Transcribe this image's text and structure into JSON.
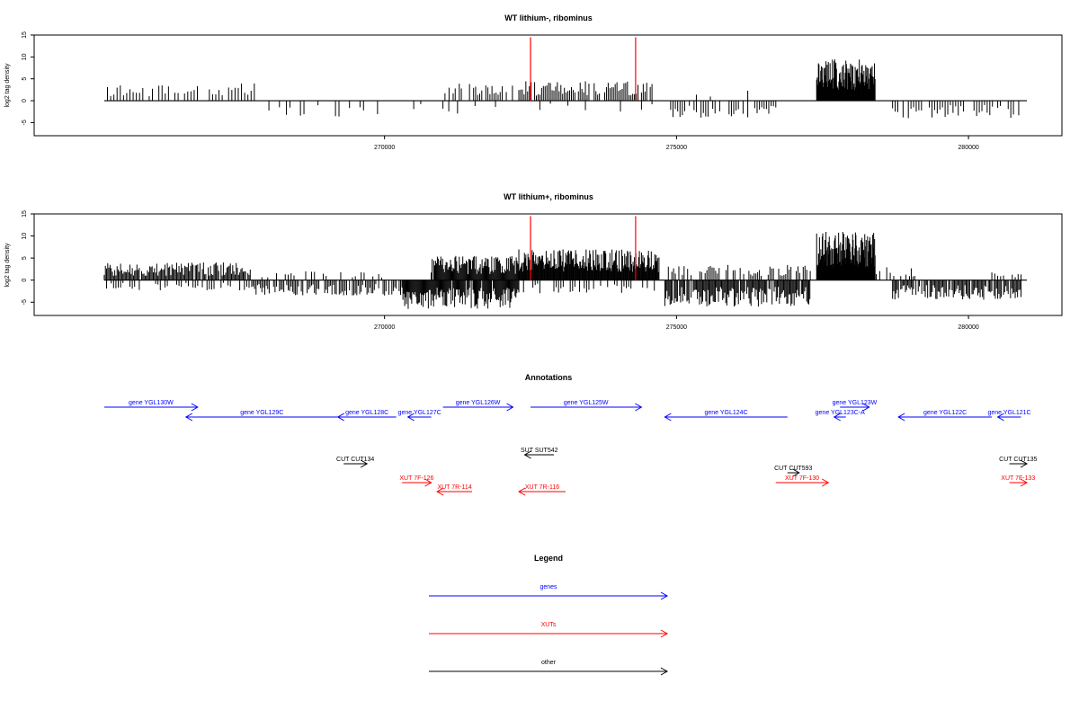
{
  "colors": {
    "genes": "#0000ff",
    "xuts": "#ff0000",
    "other": "#000000",
    "marker": "#ff0000"
  },
  "chart_data": [
    {
      "type": "bar",
      "title": "WT lithium-, ribominus",
      "ylabel": "log2 tag density",
      "xlim": [
        264000,
        281600
      ],
      "ylim": [
        -8,
        15
      ],
      "x_ticks": [
        270000,
        275000,
        280000
      ],
      "y_ticks": [
        15,
        10,
        5,
        0,
        -5
      ],
      "markers_x": [
        272500,
        274300
      ],
      "marker_top": 14.5,
      "segments": [
        {
          "x0": 265200,
          "x1": 266800,
          "amp": 3.5,
          "step": 55,
          "density": 0.8,
          "seed": 11
        },
        {
          "x0": 267000,
          "x1": 267800,
          "amp": 4,
          "step": 55,
          "density": 0.8,
          "seed": 12
        },
        {
          "x0": 267900,
          "x1": 270000,
          "amp": -4,
          "step": 60,
          "density": 0.35,
          "seed": 13
        },
        {
          "x0": 270200,
          "x1": 270900,
          "amp": -3,
          "step": 60,
          "density": 0.4,
          "seed": 14
        },
        {
          "x0": 271000,
          "x1": 272200,
          "amp": 4.5,
          "step": 35,
          "density": 0.75,
          "seed": 15
        },
        {
          "x0": 271000,
          "x1": 272200,
          "amp": -3,
          "step": 50,
          "density": 0.3,
          "seed": 16
        },
        {
          "x0": 272300,
          "x1": 274600,
          "amp": 4.5,
          "step": 30,
          "density": 0.85,
          "seed": 17
        },
        {
          "x0": 272300,
          "x1": 274600,
          "amp": -2.5,
          "step": 60,
          "density": 0.25,
          "seed": 18
        },
        {
          "x0": 274900,
          "x1": 276700,
          "amp": -4,
          "step": 40,
          "density": 0.8,
          "seed": 19
        },
        {
          "x0": 275100,
          "x1": 277000,
          "amp": 2.5,
          "step": 80,
          "density": 0.2,
          "seed": 20
        },
        {
          "x0": 277400,
          "x1": 278400,
          "amp": 9.5,
          "step": 10,
          "density": 1.0,
          "seed": 21
        },
        {
          "x0": 278700,
          "x1": 280900,
          "amp": -4,
          "step": 45,
          "density": 0.7,
          "seed": 22
        }
      ]
    },
    {
      "type": "bar",
      "title": "WT lithium+, ribominus",
      "ylabel": "log2 tag density",
      "xlim": [
        264000,
        281600
      ],
      "ylim": [
        -8,
        15
      ],
      "x_ticks": [
        270000,
        275000,
        280000
      ],
      "y_ticks": [
        15,
        10,
        5,
        0,
        -5
      ],
      "markers_x": [
        272500,
        274300
      ],
      "marker_top": 14.5,
      "segments": [
        {
          "x0": 265200,
          "x1": 267700,
          "amp": 4,
          "step": 20,
          "density": 0.95,
          "seed": 31
        },
        {
          "x0": 265200,
          "x1": 267700,
          "amp": -2.5,
          "step": 40,
          "density": 0.5,
          "seed": 32
        },
        {
          "x0": 267700,
          "x1": 270300,
          "amp": -3.5,
          "step": 25,
          "density": 0.8,
          "seed": 33
        },
        {
          "x0": 267900,
          "x1": 270000,
          "amp": 2,
          "step": 50,
          "density": 0.4,
          "seed": 34
        },
        {
          "x0": 270300,
          "x1": 272300,
          "amp": -6.5,
          "step": 15,
          "density": 0.95,
          "seed": 35
        },
        {
          "x0": 270800,
          "x1": 272300,
          "amp": 5.5,
          "step": 15,
          "density": 0.95,
          "seed": 36
        },
        {
          "x0": 272300,
          "x1": 274700,
          "amp": 7,
          "step": 12,
          "density": 1.0,
          "seed": 37
        },
        {
          "x0": 272300,
          "x1": 274700,
          "amp": -3,
          "step": 40,
          "density": 0.5,
          "seed": 38
        },
        {
          "x0": 274800,
          "x1": 277300,
          "amp": -6,
          "step": 18,
          "density": 0.95,
          "seed": 39
        },
        {
          "x0": 274800,
          "x1": 277300,
          "amp": 3.5,
          "step": 30,
          "density": 0.6,
          "seed": 40
        },
        {
          "x0": 277400,
          "x1": 278400,
          "amp": 11,
          "step": 8,
          "density": 1.0,
          "seed": 41
        },
        {
          "x0": 278300,
          "x1": 279100,
          "amp": 3,
          "step": 30,
          "density": 0.6,
          "seed": 42
        },
        {
          "x0": 278700,
          "x1": 280900,
          "amp": -4.5,
          "step": 20,
          "density": 0.9,
          "seed": 43
        },
        {
          "x0": 280400,
          "x1": 280900,
          "amp": 2,
          "step": 50,
          "density": 0.5,
          "seed": 44
        }
      ]
    }
  ],
  "annotations": {
    "title": "Annotations",
    "items": [
      {
        "label": "gene YGL130W",
        "type": "genes",
        "x0": 265200,
        "x1": 266800,
        "dir": "right",
        "row": 1
      },
      {
        "label": "gene YGL129C",
        "type": "genes",
        "x0": 266600,
        "x1": 269200,
        "dir": "left",
        "row": 2
      },
      {
        "label": "gene YGL128C",
        "type": "genes",
        "x0": 269200,
        "x1": 270200,
        "dir": "left",
        "row": 2
      },
      {
        "label": "gene YGL127C",
        "type": "genes",
        "x0": 270400,
        "x1": 270800,
        "dir": "left",
        "row": 2
      },
      {
        "label": "gene YGL126W",
        "type": "genes",
        "x0": 271000,
        "x1": 272200,
        "dir": "right",
        "row": 1
      },
      {
        "label": "gene YGL125W",
        "type": "genes",
        "x0": 272500,
        "x1": 274400,
        "dir": "right",
        "row": 1
      },
      {
        "label": "gene YGL124C",
        "type": "genes",
        "x0": 274800,
        "x1": 276900,
        "dir": "left",
        "row": 2
      },
      {
        "label": "gene YGL123W",
        "type": "genes",
        "x0": 277800,
        "x1": 278300,
        "dir": "right",
        "row": 1
      },
      {
        "label": "gene YGL123C-A",
        "type": "genes",
        "x0": 277700,
        "x1": 277900,
        "dir": "left",
        "row": 2
      },
      {
        "label": "gene YGL122C",
        "type": "genes",
        "x0": 278800,
        "x1": 280400,
        "dir": "left",
        "row": 2
      },
      {
        "label": "gene YGL121C",
        "type": "genes",
        "x0": 280500,
        "x1": 280900,
        "dir": "left",
        "row": 2
      },
      {
        "label": "SUT SUT542",
        "type": "other",
        "x0": 272400,
        "x1": 272900,
        "dir": "left",
        "row": 4
      },
      {
        "label": "CUT CUT134",
        "type": "other",
        "x0": 269300,
        "x1": 269700,
        "dir": "right",
        "row": 5
      },
      {
        "label": "CUT CUT593",
        "type": "other",
        "x0": 276900,
        "x1": 277100,
        "dir": "right",
        "row": 6
      },
      {
        "label": "CUT CUT135",
        "type": "other",
        "x0": 280700,
        "x1": 281000,
        "dir": "right",
        "row": 5
      },
      {
        "label": "XUT 7F-126",
        "type": "xuts",
        "x0": 270300,
        "x1": 270800,
        "dir": "right",
        "row": 7
      },
      {
        "label": "XUT 7R-114",
        "type": "xuts",
        "x0": 270900,
        "x1": 271500,
        "dir": "left",
        "row": 8
      },
      {
        "label": "XUT 7R-116",
        "type": "xuts",
        "x0": 272300,
        "x1": 273100,
        "dir": "left",
        "row": 8
      },
      {
        "label": "XUT 7F-130",
        "type": "xuts",
        "x0": 276700,
        "x1": 277600,
        "dir": "right",
        "row": 7
      },
      {
        "label": "XUT 7F-133",
        "type": "xuts",
        "x0": 280700,
        "x1": 281000,
        "dir": "right",
        "row": 7
      }
    ]
  },
  "legend": {
    "title": "Legend",
    "items": [
      {
        "label": "genes",
        "type": "genes"
      },
      {
        "label": "XUTs",
        "type": "xuts"
      },
      {
        "label": "other",
        "type": "other"
      }
    ]
  }
}
